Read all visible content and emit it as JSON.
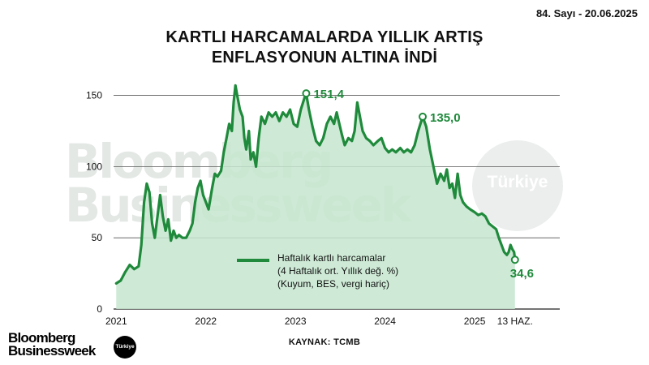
{
  "header": {
    "issue": "84. Sayı - 20.06.2025",
    "title_line1": "KARTLI HARCAMALARDA YILLIK ARTIŞ",
    "title_line2": "ENFLASYONUN ALTINA İNDİ"
  },
  "watermark": {
    "line1": "Bloomberg",
    "line2": "Businessweek",
    "badge": "Türkiye"
  },
  "legend": {
    "line1": "Haftalık kartlı harcamalar",
    "line2": "(4 Haftalık ort. Yıllık değ. %)",
    "line3": "(Kuyum, BES, vergi hariç)"
  },
  "source": "KAYNAK: TCMB",
  "logo": {
    "line1": "Bloomberg",
    "line2": "Businessweek",
    "badge": "Türkiye"
  },
  "colors": {
    "line": "#1f8a3b",
    "fill": "#c6e6cf"
  },
  "chart_data": {
    "type": "area",
    "ylim": [
      0,
      160
    ],
    "yticks": [
      0,
      50,
      100,
      150
    ],
    "grid": true,
    "legend_position": "bottom-center",
    "xlim": [
      2020.97,
      2025.95
    ],
    "xticks": [
      {
        "x": 2021.0,
        "label": "2021"
      },
      {
        "x": 2022.0,
        "label": "2022"
      },
      {
        "x": 2023.0,
        "label": "2023"
      },
      {
        "x": 2024.0,
        "label": "2024"
      },
      {
        "x": 2025.0,
        "label": "2025"
      },
      {
        "x": 2025.45,
        "label": "13 HAZ."
      }
    ],
    "annotations": [
      {
        "x": 2023.12,
        "y": 151.4,
        "label": "151,4"
      },
      {
        "x": 2024.42,
        "y": 135.0,
        "label": "135,0"
      },
      {
        "x": 2025.45,
        "y": 34.6,
        "label": "34,6"
      }
    ],
    "series": [
      {
        "points": [
          [
            2021.0,
            18
          ],
          [
            2021.05,
            20
          ],
          [
            2021.1,
            26
          ],
          [
            2021.15,
            31
          ],
          [
            2021.2,
            28
          ],
          [
            2021.25,
            30
          ],
          [
            2021.28,
            45
          ],
          [
            2021.31,
            75
          ],
          [
            2021.34,
            88
          ],
          [
            2021.37,
            82
          ],
          [
            2021.4,
            60
          ],
          [
            2021.43,
            50
          ],
          [
            2021.46,
            65
          ],
          [
            2021.49,
            80
          ],
          [
            2021.52,
            65
          ],
          [
            2021.55,
            55
          ],
          [
            2021.58,
            63
          ],
          [
            2021.61,
            48
          ],
          [
            2021.64,
            55
          ],
          [
            2021.67,
            50
          ],
          [
            2021.7,
            52
          ],
          [
            2021.74,
            50
          ],
          [
            2021.78,
            50
          ],
          [
            2021.82,
            55
          ],
          [
            2021.85,
            60
          ],
          [
            2021.88,
            75
          ],
          [
            2021.91,
            85
          ],
          [
            2021.94,
            90
          ],
          [
            2021.97,
            80
          ],
          [
            2022.0,
            75
          ],
          [
            2022.03,
            70
          ],
          [
            2022.07,
            85
          ],
          [
            2022.1,
            95
          ],
          [
            2022.13,
            93
          ],
          [
            2022.17,
            97
          ],
          [
            2022.2,
            110
          ],
          [
            2022.23,
            120
          ],
          [
            2022.26,
            130
          ],
          [
            2022.29,
            125
          ],
          [
            2022.31,
            145
          ],
          [
            2022.33,
            157
          ],
          [
            2022.35,
            150
          ],
          [
            2022.38,
            140
          ],
          [
            2022.41,
            135
          ],
          [
            2022.43,
            120
          ],
          [
            2022.45,
            112
          ],
          [
            2022.48,
            125
          ],
          [
            2022.5,
            105
          ],
          [
            2022.53,
            110
          ],
          [
            2022.56,
            100
          ],
          [
            2022.59,
            120
          ],
          [
            2022.62,
            135
          ],
          [
            2022.66,
            130
          ],
          [
            2022.7,
            138
          ],
          [
            2022.74,
            135
          ],
          [
            2022.78,
            138
          ],
          [
            2022.82,
            132
          ],
          [
            2022.86,
            138
          ],
          [
            2022.9,
            135
          ],
          [
            2022.94,
            140
          ],
          [
            2022.98,
            130
          ],
          [
            2023.02,
            128
          ],
          [
            2023.06,
            140
          ],
          [
            2023.1,
            148
          ],
          [
            2023.12,
            151.4
          ],
          [
            2023.15,
            140
          ],
          [
            2023.19,
            128
          ],
          [
            2023.23,
            118
          ],
          [
            2023.27,
            115
          ],
          [
            2023.31,
            120
          ],
          [
            2023.35,
            130
          ],
          [
            2023.39,
            135
          ],
          [
            2023.43,
            130
          ],
          [
            2023.46,
            138
          ],
          [
            2023.49,
            130
          ],
          [
            2023.52,
            122
          ],
          [
            2023.55,
            115
          ],
          [
            2023.59,
            120
          ],
          [
            2023.63,
            118
          ],
          [
            2023.66,
            125
          ],
          [
            2023.69,
            145
          ],
          [
            2023.72,
            135
          ],
          [
            2023.75,
            125
          ],
          [
            2023.79,
            120
          ],
          [
            2023.83,
            118
          ],
          [
            2023.87,
            115
          ],
          [
            2023.92,
            118
          ],
          [
            2023.96,
            120
          ],
          [
            2024.0,
            113
          ],
          [
            2024.04,
            110
          ],
          [
            2024.08,
            112
          ],
          [
            2024.12,
            110
          ],
          [
            2024.17,
            113
          ],
          [
            2024.21,
            110
          ],
          [
            2024.25,
            112
          ],
          [
            2024.29,
            110
          ],
          [
            2024.33,
            115
          ],
          [
            2024.37,
            125
          ],
          [
            2024.42,
            135
          ],
          [
            2024.46,
            128
          ],
          [
            2024.5,
            112
          ],
          [
            2024.54,
            100
          ],
          [
            2024.58,
            88
          ],
          [
            2024.62,
            95
          ],
          [
            2024.66,
            90
          ],
          [
            2024.69,
            98
          ],
          [
            2024.72,
            85
          ],
          [
            2024.75,
            88
          ],
          [
            2024.78,
            78
          ],
          [
            2024.81,
            95
          ],
          [
            2024.84,
            80
          ],
          [
            2024.87,
            75
          ],
          [
            2024.91,
            72
          ],
          [
            2024.95,
            70
          ],
          [
            2025.0,
            68
          ],
          [
            2025.04,
            66
          ],
          [
            2025.08,
            67
          ],
          [
            2025.12,
            65
          ],
          [
            2025.16,
            60
          ],
          [
            2025.2,
            58
          ],
          [
            2025.24,
            56
          ],
          [
            2025.27,
            50
          ],
          [
            2025.3,
            45
          ],
          [
            2025.33,
            40
          ],
          [
            2025.36,
            38
          ],
          [
            2025.38,
            40
          ],
          [
            2025.4,
            45
          ],
          [
            2025.42,
            42
          ],
          [
            2025.44,
            40
          ],
          [
            2025.45,
            34.6
          ]
        ]
      }
    ]
  }
}
